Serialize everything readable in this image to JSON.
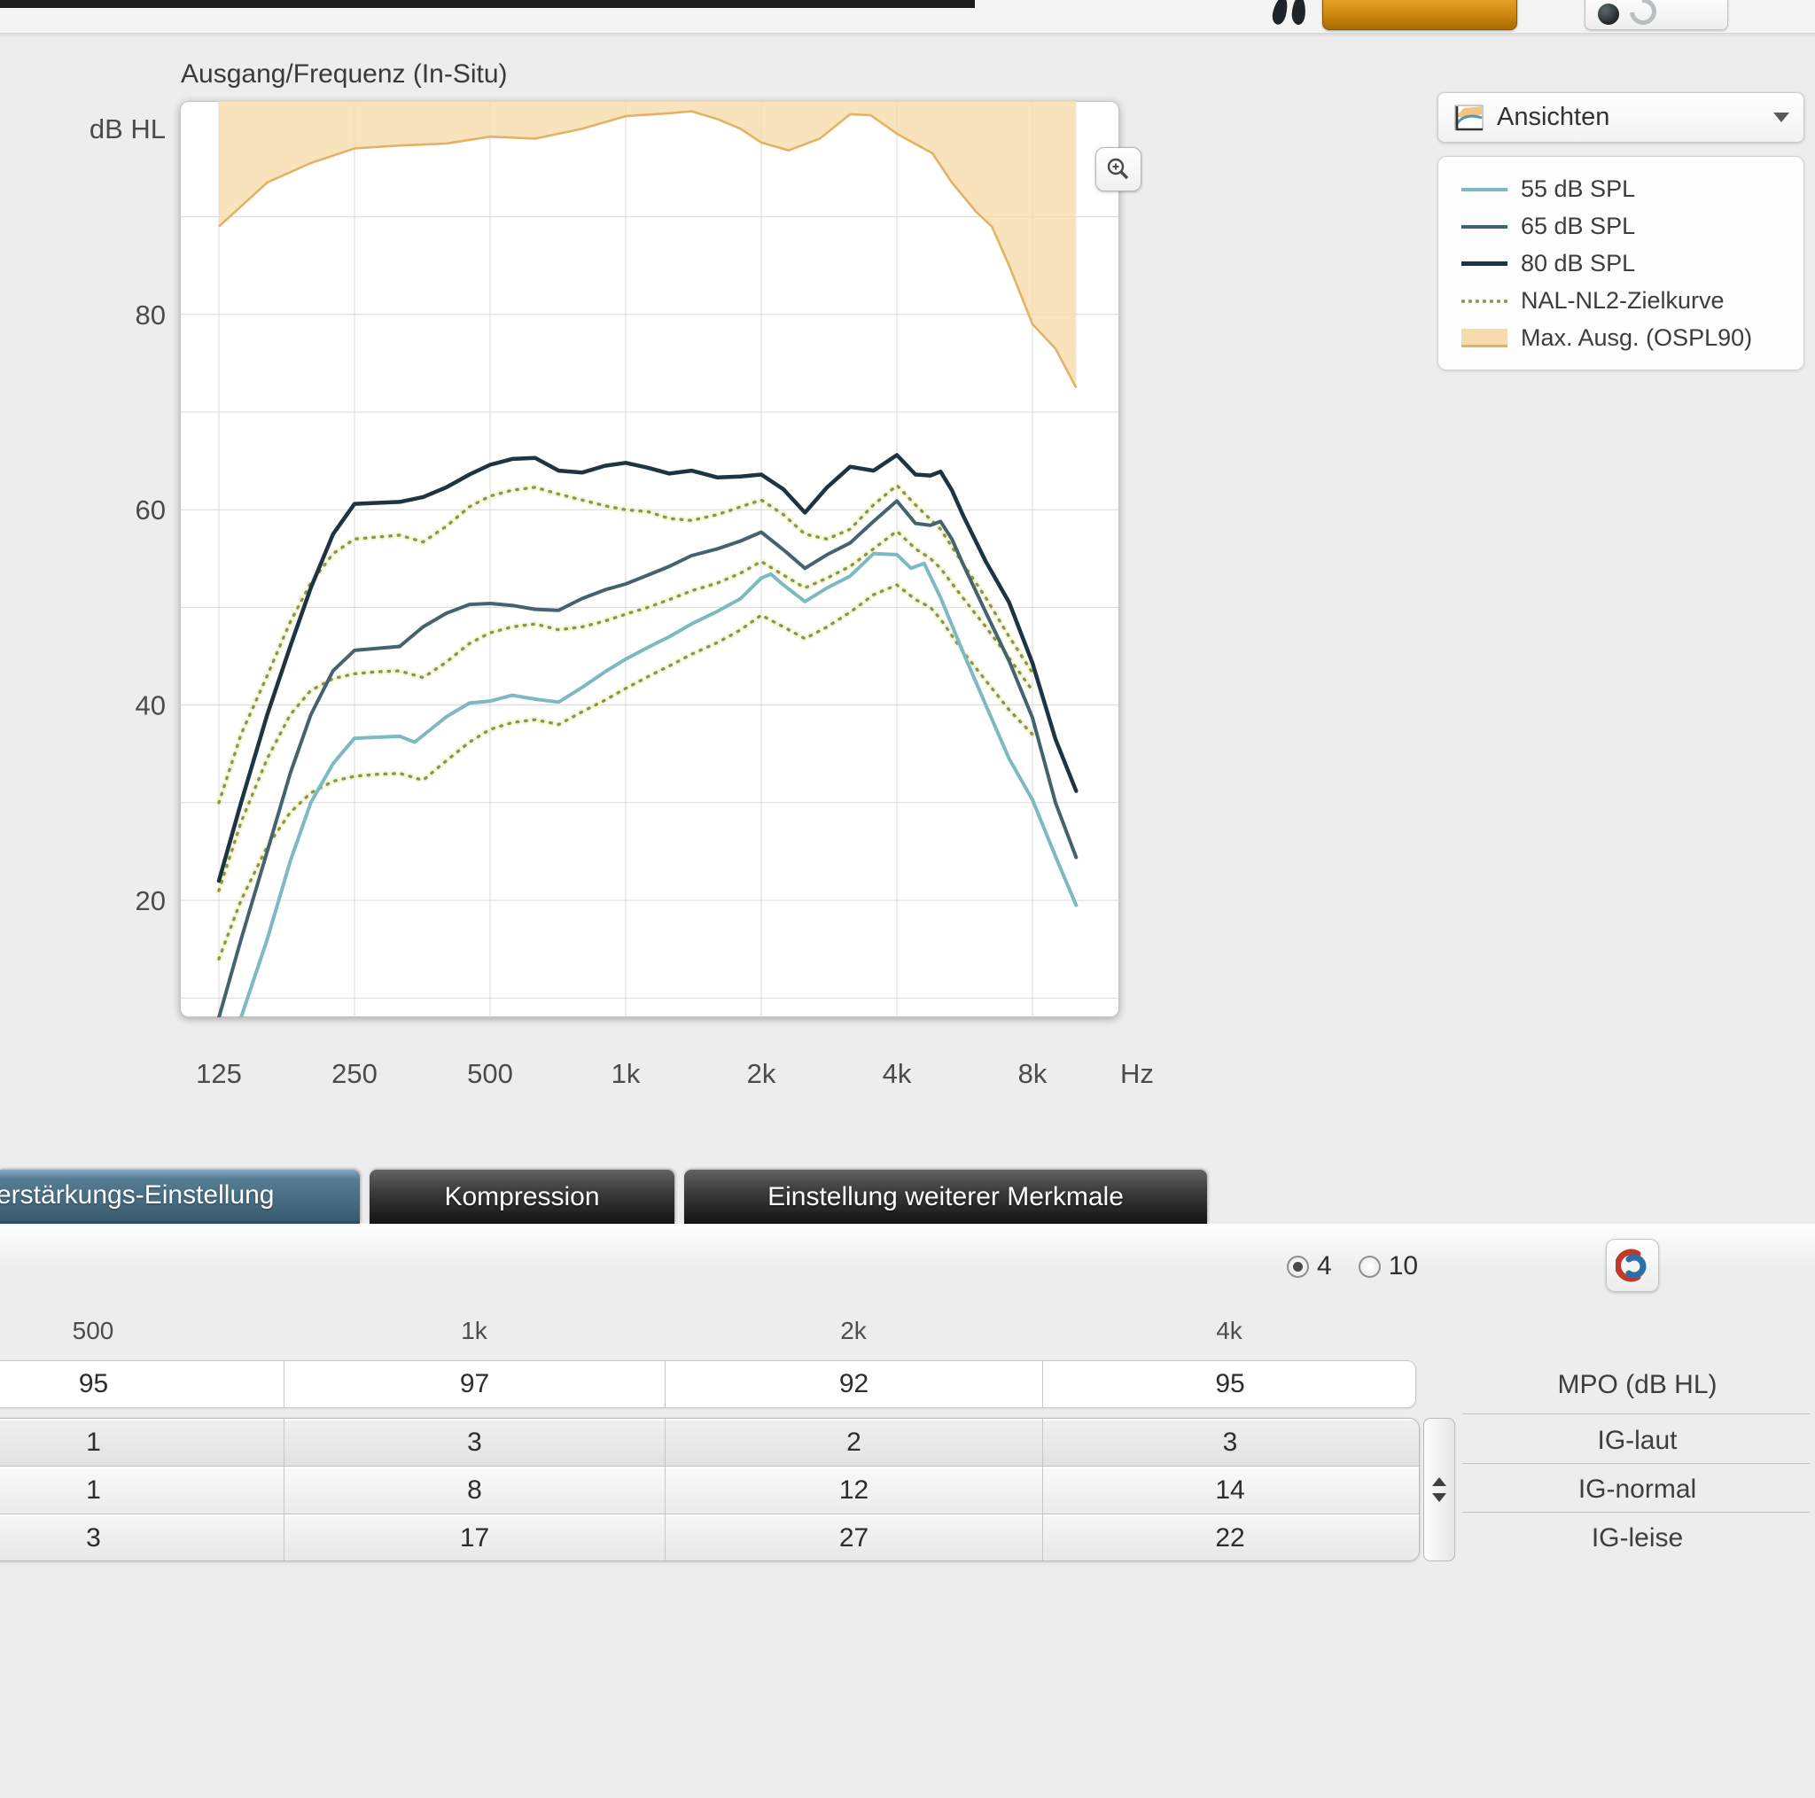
{
  "chart": {
    "title": "Ausgang/Frequenz (In-Situ)"
  },
  "views_dropdown": {
    "label": "Ansichten"
  },
  "legend": {
    "items": [
      {
        "label": "55 dB SPL",
        "style": "line",
        "color": "#7db9c3"
      },
      {
        "label": "65 dB SPL",
        "style": "line",
        "color": "#45626f"
      },
      {
        "label": "80 dB SPL",
        "style": "line",
        "color": "#1d3442"
      },
      {
        "label": "NAL-NL2-Zielkurve",
        "style": "dotted",
        "color": "#8b9747"
      },
      {
        "label": "Max. Ausg. (OSPL90)",
        "style": "area",
        "color": "#f7dcab"
      }
    ]
  },
  "chart_data": {
    "type": "line",
    "title": "Ausgang/Frequenz (In-Situ)",
    "ylabel": "dB HL",
    "x_unit": "Hz",
    "x_scale": "log2",
    "x_range_hz": [
      102,
      12400
    ],
    "y_range_db": [
      8,
      102
    ],
    "grid": "on",
    "legend_position": "right",
    "x_ticks": [
      {
        "hz": 125,
        "label": "125"
      },
      {
        "hz": 250,
        "label": "250"
      },
      {
        "hz": 500,
        "label": "500"
      },
      {
        "hz": 1000,
        "label": "1k"
      },
      {
        "hz": 2000,
        "label": "2k"
      },
      {
        "hz": 4000,
        "label": "4k"
      },
      {
        "hz": 8000,
        "label": "8k"
      }
    ],
    "y_ticks": [
      80,
      60,
      40,
      20
    ],
    "y_gridlines_db": [
      10,
      20,
      30,
      40,
      50,
      60,
      70,
      80,
      90
    ],
    "series": [
      {
        "name": "Max. Ausg. (OSPL90)",
        "style": "area",
        "color": "#e3b266",
        "fill": "#f7dcab",
        "points": [
          [
            125,
            89
          ],
          [
            160,
            93.5
          ],
          [
            200,
            95.5
          ],
          [
            250,
            97
          ],
          [
            315,
            97.3
          ],
          [
            400,
            97.5
          ],
          [
            500,
            98.2
          ],
          [
            630,
            98
          ],
          [
            800,
            99
          ],
          [
            1000,
            100.3
          ],
          [
            1250,
            100.6
          ],
          [
            1400,
            100.8
          ],
          [
            1600,
            100
          ],
          [
            1800,
            99
          ],
          [
            2000,
            97.6
          ],
          [
            2300,
            96.8
          ],
          [
            2700,
            98
          ],
          [
            3150,
            100.5
          ],
          [
            3500,
            100.4
          ],
          [
            4000,
            98.5
          ],
          [
            4500,
            97.2
          ],
          [
            4800,
            96.5
          ],
          [
            5300,
            93.5
          ],
          [
            6000,
            90.5
          ],
          [
            6500,
            89
          ],
          [
            7100,
            85
          ],
          [
            8000,
            79
          ],
          [
            9000,
            76.5
          ],
          [
            10000,
            72.5
          ]
        ]
      },
      {
        "name": "NAL-NL2-Zielkurve 80",
        "style": "dotted",
        "color": "#8b9747",
        "halo": "#eef0c4",
        "points": [
          [
            125,
            30
          ],
          [
            140,
            37
          ],
          [
            160,
            43
          ],
          [
            180,
            48.5
          ],
          [
            200,
            52.5
          ],
          [
            224,
            55.5
          ],
          [
            250,
            57
          ],
          [
            280,
            57.2
          ],
          [
            315,
            57.4
          ],
          [
            355,
            56.7
          ],
          [
            400,
            58.3
          ],
          [
            450,
            60.3
          ],
          [
            500,
            61.4
          ],
          [
            560,
            62
          ],
          [
            630,
            62.3
          ],
          [
            710,
            61.6
          ],
          [
            800,
            61
          ],
          [
            900,
            60.4
          ],
          [
            1000,
            60
          ],
          [
            1120,
            59.8
          ],
          [
            1250,
            59.1
          ],
          [
            1400,
            58.9
          ],
          [
            1600,
            59.5
          ],
          [
            1800,
            60.3
          ],
          [
            2000,
            61
          ],
          [
            2240,
            59.5
          ],
          [
            2500,
            57.5
          ],
          [
            2800,
            57
          ],
          [
            3150,
            58
          ],
          [
            3550,
            60.5
          ],
          [
            4000,
            62.5
          ],
          [
            4400,
            60.5
          ],
          [
            4750,
            59
          ],
          [
            5000,
            58
          ],
          [
            5600,
            54.5
          ],
          [
            6300,
            51
          ],
          [
            7100,
            47
          ],
          [
            8000,
            43.3
          ]
        ]
      },
      {
        "name": "NAL-NL2-Zielkurve 65",
        "style": "dotted",
        "color": "#8b9747",
        "halo": "#eef0c4",
        "points": [
          [
            125,
            21
          ],
          [
            140,
            28
          ],
          [
            160,
            34.5
          ],
          [
            180,
            39
          ],
          [
            200,
            41.5
          ],
          [
            224,
            42.7
          ],
          [
            250,
            43.2
          ],
          [
            280,
            43.4
          ],
          [
            315,
            43.5
          ],
          [
            355,
            42.8
          ],
          [
            400,
            44.4
          ],
          [
            450,
            46.3
          ],
          [
            500,
            47.4
          ],
          [
            560,
            48
          ],
          [
            630,
            48.3
          ],
          [
            710,
            47.7
          ],
          [
            800,
            48
          ],
          [
            900,
            48.6
          ],
          [
            1000,
            49.3
          ],
          [
            1120,
            50
          ],
          [
            1250,
            50.8
          ],
          [
            1400,
            51.7
          ],
          [
            1600,
            52.5
          ],
          [
            1800,
            53.5
          ],
          [
            2000,
            54.7
          ],
          [
            2240,
            53.3
          ],
          [
            2500,
            52
          ],
          [
            2800,
            53
          ],
          [
            3150,
            54.2
          ],
          [
            3550,
            56
          ],
          [
            4000,
            57.8
          ],
          [
            4400,
            56
          ],
          [
            4750,
            55
          ],
          [
            5000,
            54
          ],
          [
            5600,
            51
          ],
          [
            6300,
            48
          ],
          [
            7100,
            44.8
          ],
          [
            8000,
            41.5
          ]
        ]
      },
      {
        "name": "NAL-NL2-Zielkurve 55",
        "style": "dotted",
        "color": "#8b9747",
        "halo": "#eef0c4",
        "points": [
          [
            125,
            14
          ],
          [
            140,
            20
          ],
          [
            160,
            25.5
          ],
          [
            180,
            29
          ],
          [
            200,
            31
          ],
          [
            224,
            32.2
          ],
          [
            250,
            32.7
          ],
          [
            280,
            32.9
          ],
          [
            315,
            33
          ],
          [
            355,
            32.3
          ],
          [
            400,
            34.3
          ],
          [
            450,
            36.2
          ],
          [
            500,
            37.5
          ],
          [
            560,
            38.2
          ],
          [
            630,
            38.5
          ],
          [
            710,
            38
          ],
          [
            800,
            39.3
          ],
          [
            900,
            40.5
          ],
          [
            1000,
            41.7
          ],
          [
            1120,
            42.9
          ],
          [
            1250,
            44
          ],
          [
            1400,
            45.2
          ],
          [
            1600,
            46.4
          ],
          [
            1800,
            47.7
          ],
          [
            2000,
            49.2
          ],
          [
            2240,
            48
          ],
          [
            2500,
            46.8
          ],
          [
            2800,
            48
          ],
          [
            3150,
            49.5
          ],
          [
            3550,
            51.3
          ],
          [
            4000,
            52.3
          ],
          [
            4400,
            50.8
          ],
          [
            4750,
            50
          ],
          [
            5000,
            48.8
          ],
          [
            5600,
            45.5
          ],
          [
            6300,
            42.5
          ],
          [
            7100,
            39.5
          ],
          [
            8000,
            37
          ]
        ]
      },
      {
        "name": "55 dB SPL",
        "style": "line",
        "color": "#7db9c3",
        "width": 4,
        "points": [
          [
            125,
            2
          ],
          [
            140,
            8
          ],
          [
            160,
            16
          ],
          [
            180,
            24
          ],
          [
            200,
            30
          ],
          [
            224,
            34
          ],
          [
            250,
            36.6
          ],
          [
            280,
            36.7
          ],
          [
            315,
            36.8
          ],
          [
            340,
            36.2
          ],
          [
            400,
            38.8
          ],
          [
            450,
            40.2
          ],
          [
            500,
            40.4
          ],
          [
            560,
            41
          ],
          [
            630,
            40.6
          ],
          [
            710,
            40.3
          ],
          [
            800,
            41.8
          ],
          [
            900,
            43.4
          ],
          [
            1000,
            44.7
          ],
          [
            1120,
            45.9
          ],
          [
            1250,
            47
          ],
          [
            1400,
            48.3
          ],
          [
            1600,
            49.6
          ],
          [
            1800,
            50.9
          ],
          [
            2000,
            53
          ],
          [
            2100,
            53.4
          ],
          [
            2240,
            52.3
          ],
          [
            2500,
            50.6
          ],
          [
            2800,
            52
          ],
          [
            3150,
            53.2
          ],
          [
            3550,
            55.5
          ],
          [
            4000,
            55.4
          ],
          [
            4300,
            54
          ],
          [
            4600,
            54.5
          ],
          [
            5000,
            51
          ],
          [
            5600,
            45.5
          ],
          [
            6300,
            40
          ],
          [
            7100,
            34.5
          ],
          [
            8000,
            30.3
          ],
          [
            9000,
            24.5
          ],
          [
            10000,
            19.5
          ]
        ]
      },
      {
        "name": "65 dB SPL",
        "style": "line",
        "color": "#45626f",
        "width": 4,
        "points": [
          [
            125,
            8
          ],
          [
            140,
            16
          ],
          [
            160,
            25
          ],
          [
            180,
            33
          ],
          [
            200,
            39
          ],
          [
            224,
            43.5
          ],
          [
            250,
            45.6
          ],
          [
            280,
            45.8
          ],
          [
            315,
            46
          ],
          [
            355,
            48
          ],
          [
            400,
            49.4
          ],
          [
            450,
            50.3
          ],
          [
            500,
            50.4
          ],
          [
            560,
            50.2
          ],
          [
            630,
            49.8
          ],
          [
            710,
            49.7
          ],
          [
            800,
            50.9
          ],
          [
            900,
            51.8
          ],
          [
            1000,
            52.4
          ],
          [
            1120,
            53.3
          ],
          [
            1250,
            54.2
          ],
          [
            1400,
            55.3
          ],
          [
            1600,
            56
          ],
          [
            1800,
            56.8
          ],
          [
            2000,
            57.7
          ],
          [
            2240,
            55.9
          ],
          [
            2500,
            54
          ],
          [
            2800,
            55.4
          ],
          [
            3150,
            56.6
          ],
          [
            3550,
            58.8
          ],
          [
            4000,
            60.9
          ],
          [
            4400,
            58.6
          ],
          [
            4750,
            58.4
          ],
          [
            5000,
            58.8
          ],
          [
            5300,
            57
          ],
          [
            5600,
            54.5
          ],
          [
            6300,
            49.5
          ],
          [
            7100,
            44.5
          ],
          [
            8000,
            38.7
          ],
          [
            9000,
            30
          ],
          [
            10000,
            24.4
          ]
        ]
      },
      {
        "name": "80 dB SPL",
        "style": "line",
        "color": "#1d3442",
        "width": 4.5,
        "points": [
          [
            125,
            22
          ],
          [
            140,
            30
          ],
          [
            160,
            39
          ],
          [
            180,
            46
          ],
          [
            200,
            52
          ],
          [
            224,
            57.5
          ],
          [
            250,
            60.6
          ],
          [
            280,
            60.7
          ],
          [
            315,
            60.8
          ],
          [
            355,
            61.3
          ],
          [
            400,
            62.3
          ],
          [
            450,
            63.6
          ],
          [
            500,
            64.6
          ],
          [
            560,
            65.2
          ],
          [
            630,
            65.3
          ],
          [
            710,
            64
          ],
          [
            800,
            63.8
          ],
          [
            900,
            64.5
          ],
          [
            1000,
            64.8
          ],
          [
            1120,
            64.3
          ],
          [
            1250,
            63.7
          ],
          [
            1400,
            64
          ],
          [
            1600,
            63.3
          ],
          [
            1800,
            63.4
          ],
          [
            2000,
            63.6
          ],
          [
            2240,
            62.1
          ],
          [
            2500,
            59.7
          ],
          [
            2800,
            62.3
          ],
          [
            3150,
            64.4
          ],
          [
            3550,
            64
          ],
          [
            4000,
            65.6
          ],
          [
            4400,
            63.6
          ],
          [
            4750,
            63.5
          ],
          [
            5000,
            63.9
          ],
          [
            5300,
            62
          ],
          [
            5600,
            59.5
          ],
          [
            6300,
            54.7
          ],
          [
            7100,
            50.5
          ],
          [
            8000,
            44.3
          ],
          [
            9000,
            36.5
          ],
          [
            10000,
            31.2
          ]
        ]
      }
    ]
  },
  "tabs": {
    "items": [
      {
        "label": "erstärkungs-Einstellung",
        "active": true
      },
      {
        "label": "Kompression",
        "active": false
      },
      {
        "label": "Einstellung weiterer Merkmale",
        "active": false
      }
    ]
  },
  "gain_panel": {
    "row_count_options": [
      "4",
      "10"
    ],
    "selected_row_count": "4",
    "columns": [
      "500",
      "1k",
      "2k",
      "4k"
    ],
    "rows": [
      {
        "label": "MPO (dB HL)",
        "values": [
          95,
          97,
          92,
          95
        ]
      },
      {
        "label": "IG-laut",
        "values": [
          1,
          3,
          2,
          3
        ]
      },
      {
        "label": "IG-normal",
        "values": [
          1,
          8,
          12,
          14
        ]
      },
      {
        "label": "IG-leise",
        "values": [
          3,
          17,
          27,
          22
        ]
      }
    ]
  }
}
